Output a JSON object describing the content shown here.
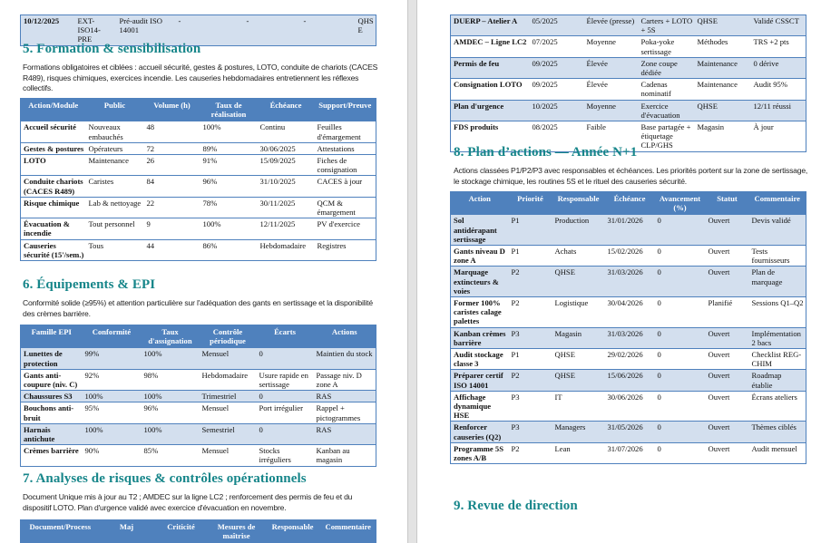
{
  "left_page": {
    "top_row": [
      "10/12/2025",
      "EXT-ISO14-PRE",
      "Pré-audit ISO 14001",
      "-",
      "-",
      "-",
      "QHSE"
    ],
    "section5": {
      "title": "5. Formation & sensibilisation",
      "paragraph": "Formations obligatoires et ciblées : accueil sécurité, gestes & postures, LOTO, conduite de chariots (CACES R489), risques chimiques, exercices incendie. Les causeries hebdomadaires entretiennent les réflexes collectifs.",
      "headers": [
        "Action/Module",
        "Public",
        "Volume (h)",
        "Taux de réalisation",
        "Échéance",
        "Support/Preuve"
      ],
      "rows": [
        [
          "Accueil sécurité",
          "Nouveaux embauchés",
          "48",
          "100%",
          "Continu",
          "Feuilles d'émargement"
        ],
        [
          "Gestes & postures",
          "Opérateurs",
          "72",
          "89%",
          "30/06/2025",
          "Attestations"
        ],
        [
          "LOTO",
          "Maintenance",
          "26",
          "91%",
          "15/09/2025",
          "Fiches de consignation"
        ],
        [
          "Conduite chariots (CACES R489)",
          "Caristes",
          "84",
          "96%",
          "31/10/2025",
          "CACES à jour"
        ],
        [
          "Risque chimique",
          "Lab & nettoyage",
          "22",
          "78%",
          "30/11/2025",
          "QCM & émargement"
        ],
        [
          "Évacuation & incendie",
          "Tout personnel",
          "9",
          "100%",
          "12/11/2025",
          "PV d'exercice"
        ],
        [
          "Causeries sécurité (15'/sem.)",
          "Tous",
          "44",
          "86%",
          "Hebdomadaire",
          "Registres"
        ]
      ]
    },
    "section6": {
      "title": "6. Équipements & EPI",
      "paragraph": "Conformité solide (≥95%) et attention particulière sur l'adéquation des gants en sertissage et la disponibilité des crèmes barrière.",
      "headers": [
        "Famille EPI",
        "Conformité",
        "Taux d'assignation",
        "Contrôle périodique",
        "Écarts",
        "Actions"
      ],
      "rows": [
        [
          "Lunettes de protection",
          "99%",
          "100%",
          "Mensuel",
          "0",
          "Maintien du stock"
        ],
        [
          "Gants anti-coupure (niv. C)",
          "92%",
          "98%",
          "Hebdomadaire",
          "Usure rapide en sertissage",
          "Passage niv. D zone A"
        ],
        [
          "Chaussures S3",
          "100%",
          "100%",
          "Trimestriel",
          "0",
          "RAS"
        ],
        [
          "Bouchons anti-bruit",
          "95%",
          "96%",
          "Mensuel",
          "Port irrégulier",
          "Rappel + pictogrammes"
        ],
        [
          "Harnais antichute",
          "100%",
          "100%",
          "Semestriel",
          "0",
          "RAS"
        ],
        [
          "Crèmes barrière",
          "90%",
          "85%",
          "Mensuel",
          "Stocks irréguliers",
          "Kanban au magasin"
        ]
      ]
    },
    "section7": {
      "title": "7. Analyses de risques & contrôles opérationnels",
      "paragraph": "Document Unique mis à jour au T2 ; AMDEC sur la ligne LC2 ; renforcement des permis de feu et du dispositif LOTO. Plan d'urgence validé avec exercice d'évacuation en novembre.",
      "headers": [
        "Document/Process",
        "Maj",
        "Criticité",
        "Mesures de maîtrise",
        "Responsable",
        "Commentaire"
      ]
    }
  },
  "right_page": {
    "section7_rows": [
      [
        "DUERP – Atelier A",
        "05/2025",
        "Élevée (presse)",
        "Carters + LOTO + 5S",
        "QHSE",
        "Validé CSSCT"
      ],
      [
        "AMDEC – Ligne LC2",
        "07/2025",
        "Moyenne",
        "Poka-yoke sertissage",
        "Méthodes",
        "TRS +2 pts"
      ],
      [
        "Permis de feu",
        "09/2025",
        "Élevée",
        "Zone coupe dédiée",
        "Maintenance",
        "0 dérive"
      ],
      [
        "Consignation LOTO",
        "09/2025",
        "Élevée",
        "Cadenas nominatif",
        "Maintenance",
        "Audit 95%"
      ],
      [
        "Plan d'urgence",
        "10/2025",
        "Moyenne",
        "Exercice d'évacuation",
        "QHSE",
        "12/11 réussi"
      ],
      [
        "FDS produits",
        "08/2025",
        "Faible",
        "Base partagée + étiquetage CLP/GHS",
        "Magasin",
        "À jour"
      ]
    ],
    "section8": {
      "title": "8. Plan d’actions — Année N+1",
      "paragraph": "Actions classées P1/P2/P3 avec responsables et échéances. Les priorités portent sur la zone de sertissage, le stockage chimique, les routines 5S et le rituel des causeries sécurité.",
      "headers": [
        "Action",
        "Priorité",
        "Responsable",
        "Échéance",
        "Avancement (%)",
        "Statut",
        "Commentaire"
      ],
      "rows": [
        [
          "Sol antidérapant sertissage",
          "P1",
          "Production",
          "31/01/2026",
          "0",
          "Ouvert",
          "Devis validé"
        ],
        [
          "Gants niveau D zone A",
          "P1",
          "Achats",
          "15/02/2026",
          "0",
          "Ouvert",
          "Tests fournisseurs"
        ],
        [
          "Marquage extincteurs & voies",
          "P2",
          "QHSE",
          "31/03/2026",
          "0",
          "Ouvert",
          "Plan de marquage"
        ],
        [
          "Former 100% caristes calage palettes",
          "P2",
          "Logistique",
          "30/04/2026",
          "0",
          "Planifié",
          "Sessions Q1–Q2"
        ],
        [
          "Kanban crèmes barrière",
          "P3",
          "Magasin",
          "31/03/2026",
          "0",
          "Ouvert",
          "Implémentation 2 bacs"
        ],
        [
          "Audit stockage classe 3",
          "P1",
          "QHSE",
          "29/02/2026",
          "0",
          "Ouvert",
          "Checklist REG-CHIM"
        ],
        [
          "Préparer certif ISO 14001",
          "P2",
          "QHSE",
          "15/06/2026",
          "0",
          "Ouvert",
          "Roadmap établie"
        ],
        [
          "Affichage dynamique HSE",
          "P3",
          "IT",
          "30/06/2026",
          "0",
          "Ouvert",
          "Écrans ateliers"
        ],
        [
          "Renforcer causeries (Q2)",
          "P3",
          "Managers",
          "31/05/2026",
          "0",
          "Ouvert",
          "Thèmes ciblés"
        ],
        [
          "Programme 5S zones A/B",
          "P2",
          "Lean",
          "31/07/2026",
          "0",
          "Ouvert",
          "Audit mensuel"
        ]
      ]
    },
    "section9": {
      "title": "9. Revue de direction"
    }
  },
  "colors": {
    "header_bg": "#4f81bd",
    "band": "#d3dfee",
    "heading": "#17868a"
  }
}
